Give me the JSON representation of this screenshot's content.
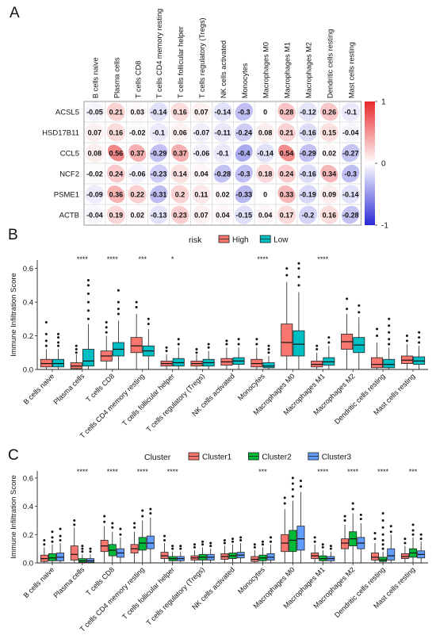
{
  "panel_labels": [
    "A",
    "B",
    "C"
  ],
  "chart_data": [
    {
      "type": "heatmap",
      "panel": "A",
      "rows": [
        "ACSL5",
        "HSD17B11",
        "CCL5",
        "NCF2",
        "PSME1",
        "ACTB"
      ],
      "columns": [
        "B cells naive",
        "Plasma cells",
        "T cells CD8",
        "T cells CD4 memory resting",
        "T cells follicular helper",
        "T cells regulatory (Tregs)",
        "NK cells activated",
        "Monocytes",
        "Macrophages M0",
        "Macrophages M1",
        "Macrophages M2",
        "Dendritic cells resting",
        "Mast cells resting"
      ],
      "values": [
        [
          -0.05,
          0.21,
          0.03,
          -0.14,
          0.16,
          0.07,
          -0.14,
          -0.3,
          0,
          0.28,
          -0.12,
          0.26,
          -0.1
        ],
        [
          0.07,
          0.16,
          -0.02,
          -0.1,
          0.06,
          -0.07,
          -0.11,
          -0.24,
          0.08,
          0.21,
          -0.16,
          0.15,
          -0.04
        ],
        [
          0.08,
          0.56,
          0.37,
          -0.29,
          0.37,
          -0.06,
          -0.1,
          -0.4,
          -0.14,
          0.54,
          -0.29,
          0.02,
          -0.27
        ],
        [
          -0.02,
          0.24,
          -0.06,
          -0.23,
          0.14,
          0.04,
          -0.28,
          -0.3,
          0.18,
          0.24,
          -0.16,
          0.34,
          -0.3
        ],
        [
          -0.09,
          0.36,
          0.22,
          -0.31,
          0.2,
          0.11,
          0.02,
          -0.33,
          0,
          0.33,
          -0.19,
          0.09,
          -0.14
        ],
        [
          -0.04,
          0.19,
          0.02,
          -0.13,
          0.23,
          0.07,
          0.04,
          -0.15,
          0.04,
          0.17,
          -0.2,
          0.16,
          -0.28
        ]
      ],
      "colorbar": {
        "ticks": [
          "1",
          "0",
          "-1"
        ],
        "colors": [
          "#e8282a",
          "#ffffff",
          "#2a2ad6"
        ],
        "range": [
          -1,
          1
        ]
      }
    },
    {
      "type": "box",
      "panel": "B",
      "ylabel": "Immune Infiltration Score",
      "ylim": [
        0,
        0.65
      ],
      "yticks": [
        "0.0",
        "0.2",
        "0.4",
        "0.6"
      ],
      "legend_title": "risk",
      "categories": [
        "B cells naive",
        "Plasma cells",
        "T cells CD8",
        "T cells CD4 memory resting",
        "T cells follicular helper",
        "T cells regulatory (Tregs)",
        "NK cells activated",
        "Monocytes",
        "Macrophages M0",
        "Macrophages M1",
        "Macrophages M2",
        "Dendritic cells resting",
        "Mast cells resting"
      ],
      "significance": [
        "",
        "****",
        "****",
        "***",
        "*",
        "",
        "",
        "****",
        "",
        "****",
        "",
        "",
        ""
      ],
      "series": [
        {
          "name": "High",
          "color": "#f8766d",
          "boxes": [
            [
              0,
              0.015,
              0.035,
              0.06,
              0.12
            ],
            [
              0,
              0.005,
              0.02,
              0.04,
              0.09
            ],
            [
              0,
              0.05,
              0.08,
              0.11,
              0.2
            ],
            [
              0,
              0.1,
              0.14,
              0.19,
              0.33
            ],
            [
              0,
              0.02,
              0.035,
              0.05,
              0.09
            ],
            [
              0,
              0.02,
              0.035,
              0.05,
              0.09
            ],
            [
              0,
              0.025,
              0.045,
              0.065,
              0.13
            ],
            [
              0,
              0.015,
              0.035,
              0.06,
              0.13
            ],
            [
              0,
              0.08,
              0.16,
              0.27,
              0.52
            ],
            [
              0,
              0.015,
              0.03,
              0.05,
              0.1
            ],
            [
              0,
              0.12,
              0.165,
              0.21,
              0.33
            ],
            [
              0,
              0.01,
              0.03,
              0.07,
              0.16
            ],
            [
              0,
              0.035,
              0.055,
              0.08,
              0.15
            ]
          ],
          "outliers": [
            [
              0.14,
              0.17,
              0.21,
              0.28
            ],
            [
              0.1,
              0.12,
              0.14
            ],
            [
              0.22,
              0.25,
              0.28
            ],
            [
              0.37,
              0.4
            ],
            [
              0.11,
              0.13
            ],
            [
              0.1,
              0.12
            ],
            [
              0.15,
              0.17
            ],
            [
              0.15,
              0.18
            ],
            [
              0.56,
              0.6
            ],
            [
              0.12,
              0.14
            ],
            [
              0.36,
              0.42
            ],
            [
              0.2,
              0.24
            ],
            [
              0.17,
              0.2
            ]
          ]
        },
        {
          "name": "Low",
          "color": "#00bfc4",
          "boxes": [
            [
              0,
              0.015,
              0.035,
              0.06,
              0.12
            ],
            [
              0,
              0.02,
              0.05,
              0.12,
              0.27
            ],
            [
              0,
              0.08,
              0.12,
              0.16,
              0.29
            ],
            [
              0,
              0.08,
              0.11,
              0.14,
              0.24
            ],
            [
              0,
              0.02,
              0.04,
              0.065,
              0.13
            ],
            [
              0,
              0.02,
              0.04,
              0.06,
              0.11
            ],
            [
              0,
              0.03,
              0.05,
              0.07,
              0.13
            ],
            [
              0,
              0.01,
              0.02,
              0.04,
              0.08
            ],
            [
              0,
              0.08,
              0.15,
              0.23,
              0.46
            ],
            [
              0,
              0.025,
              0.045,
              0.07,
              0.14
            ],
            [
              0,
              0.1,
              0.145,
              0.19,
              0.31
            ],
            [
              0,
              0.01,
              0.03,
              0.06,
              0.13
            ],
            [
              0,
              0.03,
              0.05,
              0.075,
              0.14
            ]
          ],
          "outliers": [
            [
              0.14,
              0.16,
              0.19,
              0.21
            ],
            [
              0.3,
              0.35,
              0.4,
              0.45,
              0.5,
              0.53
            ],
            [
              0.33,
              0.36,
              0.4,
              0.47
            ],
            [
              0.27,
              0.3
            ],
            [
              0.15,
              0.18
            ],
            [
              0.13,
              0.15
            ],
            [
              0.15,
              0.18
            ],
            [
              0.1,
              0.12,
              0.14
            ],
            [
              0.5,
              0.55,
              0.6,
              0.63
            ],
            [
              0.16,
              0.19
            ],
            [
              0.34,
              0.38
            ],
            [
              0.15,
              0.18,
              0.22,
              0.26,
              0.3
            ],
            [
              0.16,
              0.19,
              0.22
            ]
          ]
        }
      ]
    },
    {
      "type": "box",
      "panel": "C",
      "ylabel": "Immune Infiltration Score",
      "ylim": [
        0,
        0.65
      ],
      "yticks": [
        "0.0",
        "0.2",
        "0.4",
        "0.6"
      ],
      "legend_title": "Cluster",
      "categories": [
        "B cells naive",
        "Plasma cells",
        "T cells CD8",
        "T cells CD4 memory resting",
        "T cells follicular helper",
        "T cells regulatory (Tregs)",
        "NK cells activated",
        "Monocytes",
        "Macrophages M0",
        "Macrophages M1",
        "Macrophages M2",
        "Dendritic cells resting",
        "Mast cells resting"
      ],
      "significance": [
        "",
        "****",
        "****",
        "****",
        "****",
        "",
        "",
        "***",
        "",
        "****",
        "****",
        "****",
        "***"
      ],
      "series": [
        {
          "name": "Cluster1",
          "color": "#f8766d",
          "boxes": [
            [
              0,
              0.01,
              0.03,
              0.055,
              0.11
            ],
            [
              0,
              0.02,
              0.06,
              0.12,
              0.25
            ],
            [
              0,
              0.08,
              0.12,
              0.16,
              0.26
            ],
            [
              0,
              0.07,
              0.1,
              0.13,
              0.22
            ],
            [
              0,
              0.03,
              0.05,
              0.075,
              0.14
            ],
            [
              0,
              0.02,
              0.035,
              0.05,
              0.09
            ],
            [
              0,
              0.025,
              0.045,
              0.065,
              0.12
            ],
            [
              0,
              0.01,
              0.025,
              0.045,
              0.09
            ],
            [
              0,
              0.08,
              0.14,
              0.2,
              0.38
            ],
            [
              0,
              0.03,
              0.05,
              0.07,
              0.13
            ],
            [
              0,
              0.1,
              0.14,
              0.17,
              0.27
            ],
            [
              0,
              0.02,
              0.04,
              0.07,
              0.14
            ],
            [
              0,
              0.03,
              0.045,
              0.065,
              0.12
            ]
          ],
          "outliers": [
            [
              0.13,
              0.16
            ],
            [
              0.27,
              0.3
            ],
            [
              0.29,
              0.33
            ],
            [
              0.25,
              0.28
            ],
            [
              0.16,
              0.19
            ],
            [
              0.11,
              0.13
            ],
            [
              0.14,
              0.16
            ],
            [
              0.11,
              0.13
            ],
            [
              0.42,
              0.46
            ],
            [
              0.15,
              0.18
            ],
            [
              0.3,
              0.33
            ],
            [
              0.17,
              0.21
            ],
            [
              0.14,
              0.17
            ]
          ]
        },
        {
          "name": "Cluster2",
          "color": "#00ba38",
          "boxes": [
            [
              0,
              0.015,
              0.035,
              0.065,
              0.13
            ],
            [
              0,
              0.005,
              0.015,
              0.03,
              0.06
            ],
            [
              0,
              0.05,
              0.09,
              0.13,
              0.22
            ],
            [
              0,
              0.09,
              0.14,
              0.18,
              0.3
            ],
            [
              0,
              0.015,
              0.03,
              0.045,
              0.08
            ],
            [
              0,
              0.02,
              0.04,
              0.06,
              0.11
            ],
            [
              0,
              0.03,
              0.05,
              0.07,
              0.13
            ],
            [
              0,
              0.015,
              0.035,
              0.055,
              0.11
            ],
            [
              0,
              0.08,
              0.16,
              0.23,
              0.44
            ],
            [
              0,
              0.015,
              0.03,
              0.05,
              0.09
            ],
            [
              0,
              0.12,
              0.17,
              0.22,
              0.35
            ],
            [
              0,
              0.01,
              0.02,
              0.04,
              0.08
            ],
            [
              0,
              0.04,
              0.07,
              0.1,
              0.18
            ]
          ],
          "outliers": [
            [
              0.15,
              0.18,
              0.22
            ],
            [
              0.08,
              0.1,
              0.12
            ],
            [
              0.25,
              0.28
            ],
            [
              0.33,
              0.37
            ],
            [
              0.1,
              0.12
            ],
            [
              0.13,
              0.15
            ],
            [
              0.15,
              0.17
            ],
            [
              0.13,
              0.15
            ],
            [
              0.47,
              0.52,
              0.56,
              0.6
            ],
            [
              0.11,
              0.13
            ],
            [
              0.38,
              0.42
            ],
            [
              0.1,
              0.13,
              0.16,
              0.2,
              0.25,
              0.3,
              0.35
            ],
            [
              0.2,
              0.23,
              0.27
            ]
          ]
        },
        {
          "name": "Cluster3",
          "color": "#619cff",
          "boxes": [
            [
              0,
              0.015,
              0.04,
              0.07,
              0.14
            ],
            [
              0,
              0.005,
              0.015,
              0.03,
              0.06
            ],
            [
              0,
              0.04,
              0.07,
              0.1,
              0.18
            ],
            [
              0,
              0.1,
              0.14,
              0.19,
              0.32
            ],
            [
              0,
              0.015,
              0.03,
              0.045,
              0.08
            ],
            [
              0,
              0.02,
              0.04,
              0.06,
              0.1
            ],
            [
              0,
              0.035,
              0.055,
              0.075,
              0.14
            ],
            [
              0,
              0.02,
              0.04,
              0.065,
              0.13
            ],
            [
              0,
              0.09,
              0.17,
              0.26,
              0.5
            ],
            [
              0,
              0.015,
              0.03,
              0.045,
              0.08
            ],
            [
              0,
              0.1,
              0.14,
              0.18,
              0.28
            ],
            [
              0,
              0.02,
              0.05,
              0.1,
              0.2
            ],
            [
              0,
              0.035,
              0.06,
              0.085,
              0.15
            ]
          ],
          "outliers": [
            [
              0.16,
              0.19,
              0.24
            ],
            [
              0.08,
              0.1
            ],
            [
              0.2,
              0.24
            ],
            [
              0.35,
              0.38
            ],
            [
              0.1,
              0.12
            ],
            [
              0.12,
              0.14
            ],
            [
              0.16,
              0.18
            ],
            [
              0.15,
              0.18
            ],
            [
              0.54,
              0.58
            ],
            [
              0.1,
              0.12
            ],
            [
              0.31,
              0.34
            ],
            [
              0.22,
              0.26
            ],
            [
              0.17,
              0.2
            ]
          ]
        }
      ]
    }
  ]
}
